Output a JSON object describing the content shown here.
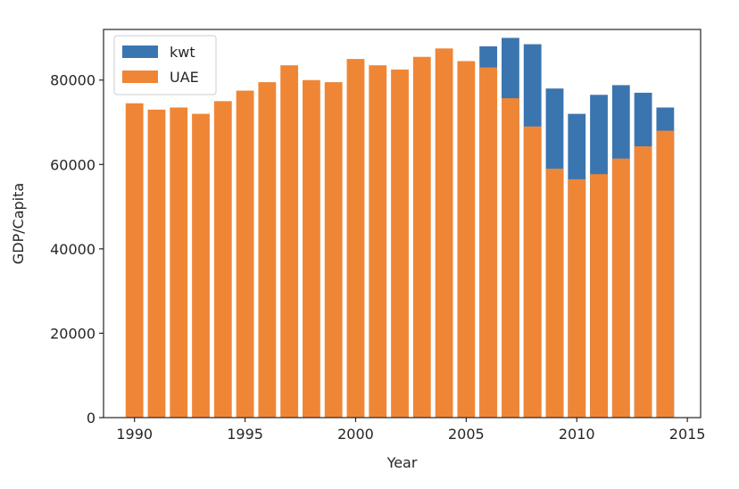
{
  "chart_data": {
    "type": "bar",
    "xlabel": "Year",
    "ylabel": "GDP/Capita",
    "xlim": [
      1988.6,
      2015.6
    ],
    "ylim": [
      0,
      92000
    ],
    "x_ticks": [
      1990,
      1995,
      2000,
      2005,
      2010,
      2015
    ],
    "y_ticks": [
      0,
      20000,
      40000,
      60000,
      80000
    ],
    "legend_position": "top-left",
    "grid": false,
    "colors": {
      "kwt": "#3a75b0",
      "UAE": "#ef8636",
      "axis": "#262626"
    },
    "x": [
      1990,
      1991,
      1992,
      1993,
      1994,
      1995,
      1996,
      1997,
      1998,
      1999,
      2000,
      2001,
      2002,
      2003,
      2004,
      2005,
      2006,
      2007,
      2008,
      2009,
      2010,
      2011,
      2012,
      2013,
      2014
    ],
    "series": [
      {
        "name": "kwt",
        "values": [
          null,
          null,
          null,
          null,
          null,
          null,
          null,
          null,
          null,
          null,
          null,
          null,
          null,
          null,
          null,
          null,
          88000,
          90000,
          88500,
          78000,
          72000,
          76500,
          78800,
          77000,
          73500
        ]
      },
      {
        "name": "UAE",
        "values": [
          74500,
          73000,
          73500,
          72000,
          75000,
          77500,
          79500,
          83500,
          80000,
          79500,
          85000,
          83500,
          82500,
          85500,
          87500,
          84500,
          83000,
          75700,
          69000,
          59000,
          56500,
          57700,
          61400,
          64300,
          68000
        ]
      }
    ]
  }
}
